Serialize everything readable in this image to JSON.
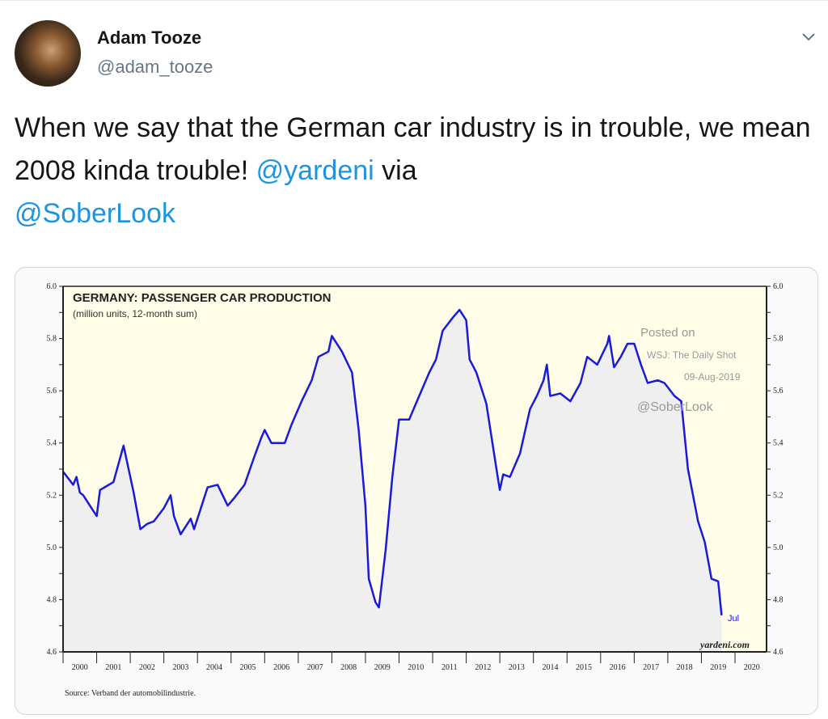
{
  "tweet": {
    "author_name": "Adam Tooze",
    "author_handle": "@adam_tooze",
    "text_before": "When we say that the German car industry is in trouble, we mean 2008 kinda trouble! ",
    "mention_1": "@yardeni",
    "text_middle": " via ",
    "mention_2": "@SoberLook",
    "menu_icon": "chevron-down-icon",
    "link_color": "#1b95e0"
  },
  "chart_data": {
    "type": "area",
    "title": "GERMANY: PASSENGER CAR PRODUCTION",
    "subtitle": "(million units, 12-month sum)",
    "xlabel": "",
    "ylabel": "",
    "xlim": [
      2000,
      2020
    ],
    "ylim": [
      4.6,
      6.0
    ],
    "y_ticks": [
      "6.0",
      "5.8",
      "5.6",
      "5.4",
      "5.2",
      "5.0",
      "4.8",
      "4.6"
    ],
    "x_ticks": [
      "2000",
      "2001",
      "2002",
      "2003",
      "2004",
      "2005",
      "2006",
      "2007",
      "2008",
      "2009",
      "2010",
      "2011",
      "2012",
      "2013",
      "2014",
      "2015",
      "2016",
      "2017",
      "2018",
      "2019",
      "2020"
    ],
    "line_color": "#1a1adb",
    "end_label": "Jul",
    "watermark": [
      "Posted on",
      "WSJ: The Daily Shot",
      "09-Aug-2019",
      "@SoberLook"
    ],
    "brand": "yardeni.com",
    "source": "Source: Verband der automobilindustrie.",
    "series": [
      {
        "x": [
          2000.0,
          2000.3,
          2000.4,
          2000.5,
          2000.6,
          2000.9,
          2001.0,
          2001.1,
          2001.5,
          2001.8,
          2002.1,
          2002.3,
          2002.5,
          2002.7,
          2003.0,
          2003.2,
          2003.3,
          2003.5,
          2003.8,
          2003.9,
          2004.1,
          2004.3,
          2004.6,
          2004.9,
          2005.1,
          2005.4,
          2005.7,
          2005.9,
          2006.0,
          2006.2,
          2006.6,
          2006.8,
          2007.1,
          2007.4,
          2007.6,
          2007.9,
          2008.0,
          2008.3,
          2008.6,
          2008.8,
          2009.0,
          2009.1,
          2009.3,
          2009.4,
          2009.6,
          2009.8,
          2010.0,
          2010.3,
          2010.6,
          2010.9,
          2011.1,
          2011.3,
          2011.6,
          2011.8,
          2012.0,
          2012.1,
          2012.3,
          2012.6,
          2012.9,
          2013.0,
          2013.1,
          2013.3,
          2013.6,
          2013.9,
          2014.1,
          2014.3,
          2014.4,
          2014.5,
          2014.8,
          2015.1,
          2015.4,
          2015.6,
          2015.9,
          2016.2,
          2016.25,
          2016.4,
          2016.6,
          2016.8,
          2017.0,
          2017.2,
          2017.4,
          2017.7,
          2017.9,
          2018.2,
          2018.4,
          2018.6,
          2018.9,
          2019.1,
          2019.3,
          2019.5,
          2019.6
        ],
        "y": [
          5.29,
          5.24,
          5.27,
          5.21,
          5.2,
          5.14,
          5.12,
          5.22,
          5.25,
          5.39,
          5.21,
          5.07,
          5.09,
          5.1,
          5.15,
          5.2,
          5.12,
          5.05,
          5.11,
          5.07,
          5.15,
          5.23,
          5.24,
          5.16,
          5.19,
          5.24,
          5.35,
          5.42,
          5.45,
          5.4,
          5.4,
          5.47,
          5.56,
          5.64,
          5.73,
          5.75,
          5.81,
          5.75,
          5.67,
          5.45,
          5.16,
          4.88,
          4.79,
          4.77,
          4.99,
          5.27,
          5.49,
          5.49,
          5.58,
          5.67,
          5.72,
          5.83,
          5.88,
          5.91,
          5.87,
          5.72,
          5.67,
          5.55,
          5.3,
          5.22,
          5.28,
          5.27,
          5.36,
          5.53,
          5.58,
          5.64,
          5.7,
          5.58,
          5.59,
          5.56,
          5.63,
          5.73,
          5.7,
          5.78,
          5.81,
          5.69,
          5.73,
          5.78,
          5.78,
          5.7,
          5.63,
          5.64,
          5.63,
          5.58,
          5.56,
          5.3,
          5.1,
          5.02,
          4.88,
          4.87,
          4.74
        ]
      }
    ]
  }
}
